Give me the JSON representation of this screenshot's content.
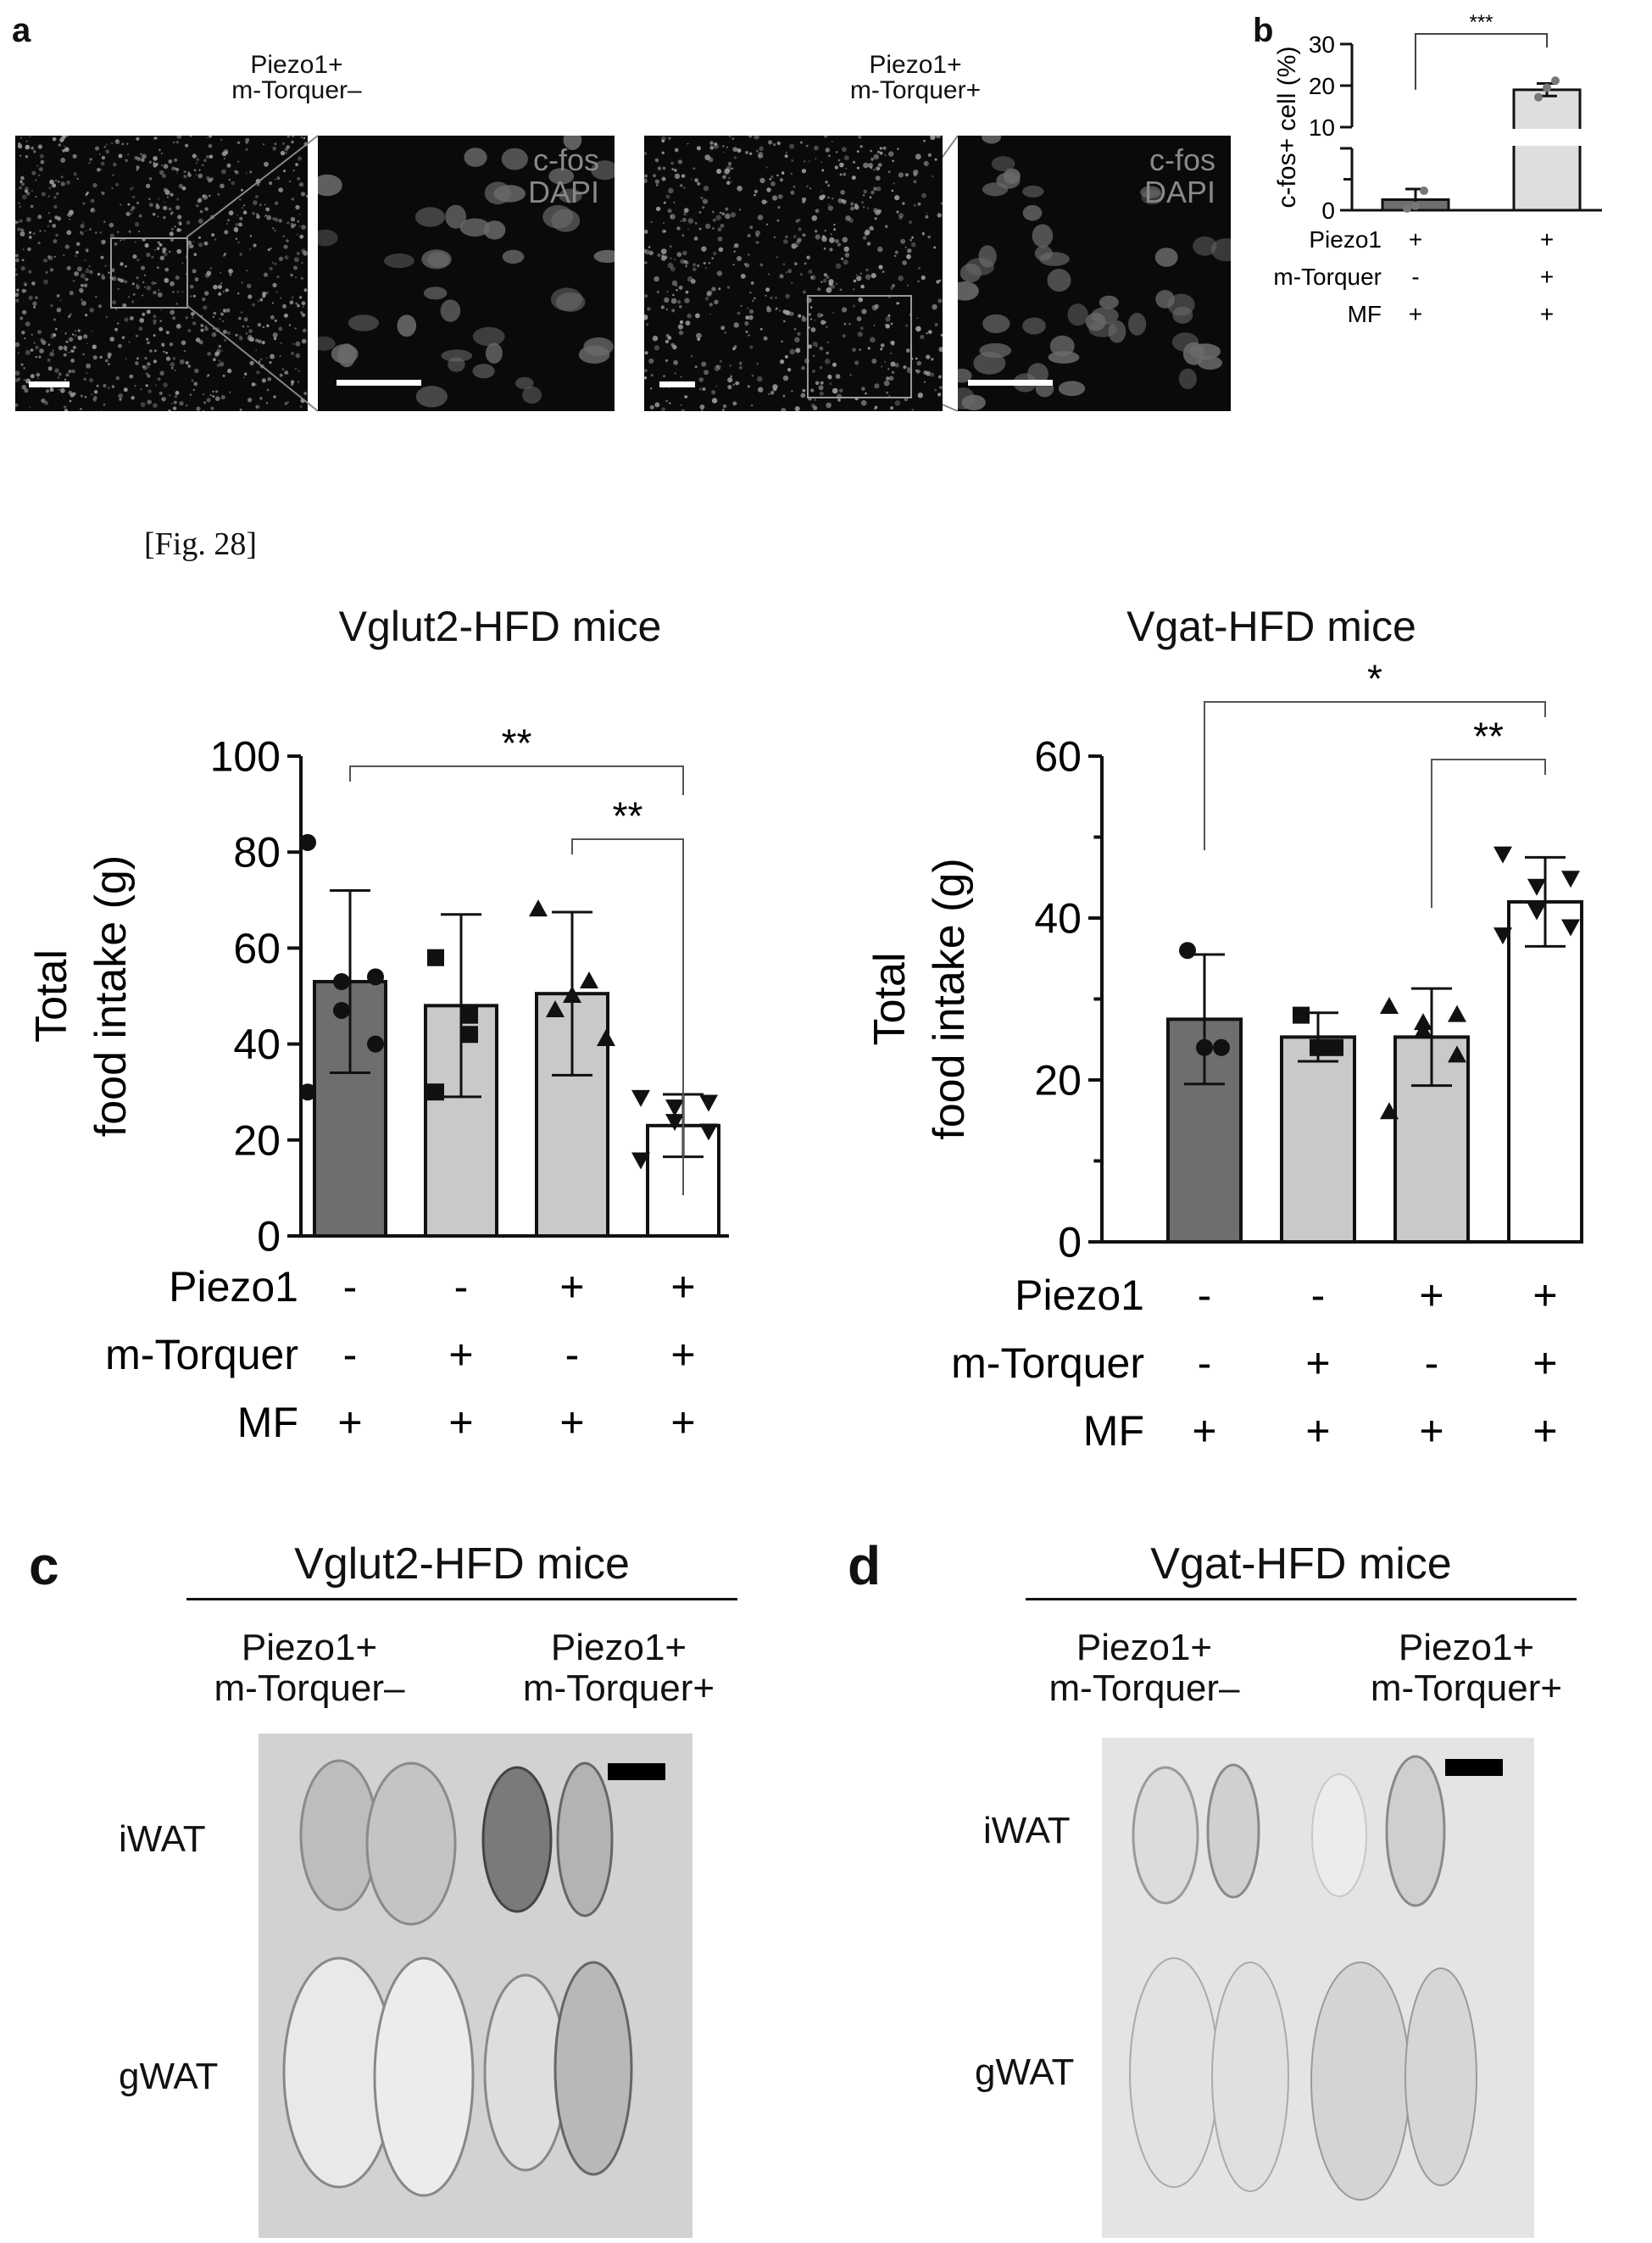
{
  "top_figure": {
    "panel_a_letter": "a",
    "panel_b_letter": "b",
    "image_titles": [
      [
        "Piezo1+",
        "m-Torquer–"
      ],
      [
        "Piezo1+",
        "m-Torquer+"
      ]
    ],
    "overlay_labels": [
      "c-fos",
      "DAPI"
    ]
  },
  "fig_caption": "[Fig. 28]",
  "bottom_panels": {
    "c": {
      "letter": "c",
      "title": "Vglut2-HFD mice",
      "conditions": [
        [
          "Piezo1+",
          "m-Torquer–"
        ],
        [
          "Piezo1+",
          "m-Torquer+"
        ]
      ],
      "rows": [
        "iWAT",
        "gWAT"
      ]
    },
    "d": {
      "letter": "d",
      "title": "Vgat-HFD mice",
      "conditions": [
        [
          "Piezo1+",
          "m-Torquer–"
        ],
        [
          "Piezo1+",
          "m-Torquer+"
        ]
      ],
      "rows": [
        "iWAT",
        "gWAT"
      ]
    }
  },
  "colors": {
    "dark_bar": "#6e6e6e",
    "mid_bar": "#c9c9c9",
    "light_bar": "#dedede",
    "white_bar": "#ffffff",
    "ink": "#111111"
  },
  "chart_data": [
    {
      "id": "cfos",
      "type": "bar",
      "panel": "b",
      "title": "",
      "ylabel": "c-fos+ cell (%)",
      "ylim": [
        0,
        30
      ],
      "axis_break": [
        7,
        10
      ],
      "yticks": [
        "0",
        "10",
        "20",
        "30"
      ],
      "categories": [
        "1",
        "2"
      ],
      "values": [
        1.2,
        19.0
      ],
      "error": [
        1.2,
        1.5
      ],
      "points": [
        [
          0.2,
          0.5,
          2.2
        ],
        [
          17.2,
          19.5,
          21.2
        ]
      ],
      "bar_colors": [
        "#6e6e6e",
        "#dedede"
      ],
      "significance": [
        {
          "from": 0,
          "to": 1,
          "label": "***"
        }
      ],
      "conditions": [
        {
          "name": "Piezo1",
          "values": [
            "+",
            "+"
          ]
        },
        {
          "name": "m-Torquer",
          "values": [
            "-",
            "+"
          ]
        },
        {
          "name": "MF",
          "values": [
            "+",
            "+"
          ]
        }
      ]
    },
    {
      "id": "vglut2",
      "type": "bar",
      "panel": "a",
      "title": "Vglut2-HFD mice",
      "ylabel": [
        "Total",
        "food intake (g)"
      ],
      "ylim": [
        0,
        100
      ],
      "yticks": [
        "0",
        "20",
        "40",
        "60",
        "80",
        "100"
      ],
      "categories": [
        "1",
        "2",
        "3",
        "4"
      ],
      "values": [
        53,
        48,
        50.5,
        23
      ],
      "error": [
        19,
        19,
        17,
        6.5
      ],
      "points": [
        [
          82,
          54,
          53,
          47,
          40,
          30
        ],
        [
          58,
          46,
          42,
          30
        ],
        [
          68,
          53,
          50,
          47,
          41
        ],
        [
          29,
          28,
          27,
          24,
          22,
          16
        ]
      ],
      "marker": [
        "circle",
        "square",
        "triangle",
        "triangle-down"
      ],
      "bar_colors": [
        "#6e6e6e",
        "#c9c9c9",
        "#c9c9c9",
        "#ffffff"
      ],
      "significance": [
        {
          "from": 0,
          "to": 3,
          "label": "**"
        },
        {
          "from": 2,
          "to": 3,
          "label": "**"
        }
      ],
      "conditions": [
        {
          "name": "Piezo1",
          "values": [
            "-",
            "-",
            "+",
            "+"
          ]
        },
        {
          "name": "m-Torquer",
          "values": [
            "-",
            "+",
            "-",
            "+"
          ]
        },
        {
          "name": "MF",
          "values": [
            "+",
            "+",
            "+",
            "+"
          ]
        }
      ]
    },
    {
      "id": "vgat",
      "type": "bar",
      "panel": "b",
      "title": "Vgat-HFD mice",
      "ylabel": [
        "Total",
        "food intake (g)"
      ],
      "ylim": [
        0,
        60
      ],
      "yticks": [
        "0",
        "20",
        "40",
        "60"
      ],
      "categories": [
        "1",
        "2",
        "3",
        "4"
      ],
      "values": [
        27.5,
        25.3,
        25.3,
        42
      ],
      "error": [
        8,
        3,
        6,
        5.5
      ],
      "points": [
        [
          36,
          24,
          24
        ],
        [
          28,
          24,
          24
        ],
        [
          29,
          28,
          27,
          26,
          23,
          16
        ],
        [
          48,
          45,
          44,
          41,
          39,
          38
        ]
      ],
      "marker": [
        "circle",
        "square",
        "triangle",
        "triangle-down"
      ],
      "bar_colors": [
        "#6e6e6e",
        "#c9c9c9",
        "#c9c9c9",
        "#ffffff"
      ],
      "significance": [
        {
          "from": 0,
          "to": 3,
          "label": "*"
        },
        {
          "from": 2,
          "to": 3,
          "label": "**"
        }
      ],
      "conditions": [
        {
          "name": "Piezo1",
          "values": [
            "-",
            "-",
            "+",
            "+"
          ]
        },
        {
          "name": "m-Torquer",
          "values": [
            "-",
            "+",
            "-",
            "+"
          ]
        },
        {
          "name": "MF",
          "values": [
            "+",
            "+",
            "+",
            "+"
          ]
        }
      ]
    }
  ]
}
